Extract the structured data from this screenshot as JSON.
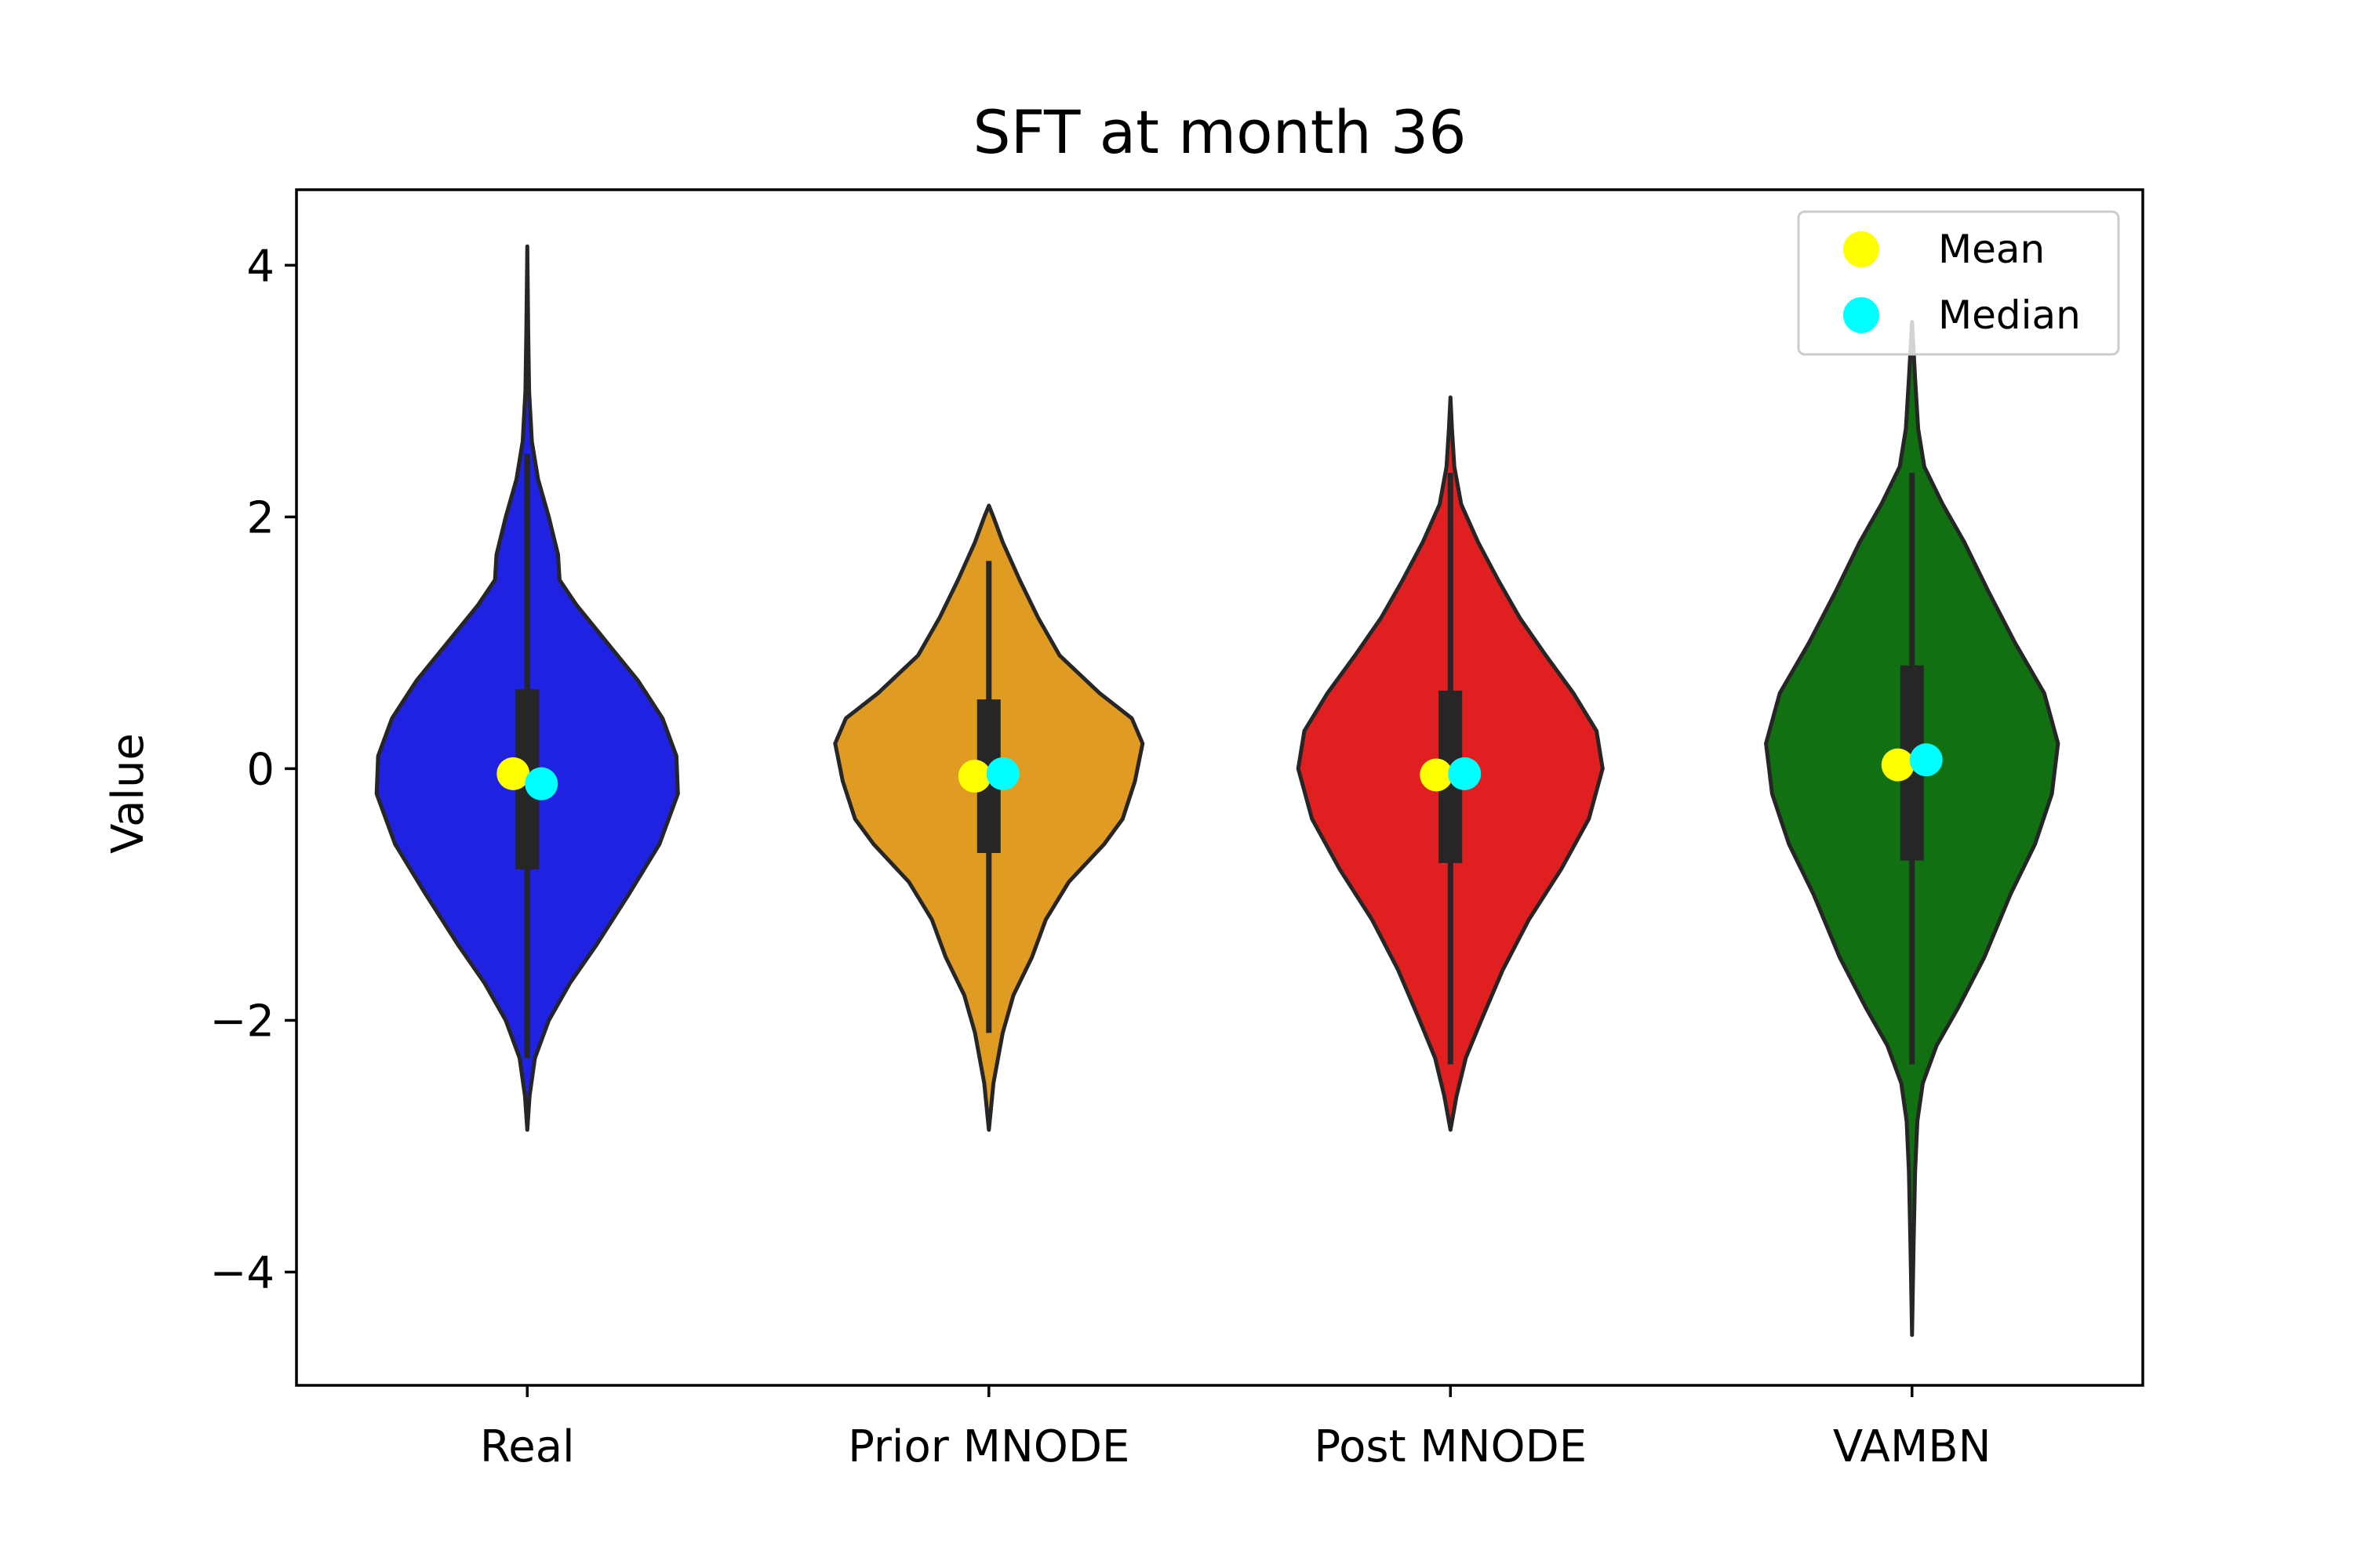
{
  "chart_data": {
    "type": "violin",
    "title": "SFT at month 36",
    "xlabel": "",
    "ylabel": "Value",
    "ylim": [
      -4.9,
      4.6
    ],
    "yticks": [
      4,
      2,
      0,
      -2,
      -4
    ],
    "ytick_labels": [
      "4",
      "2",
      "0",
      "−2",
      "−4"
    ],
    "categories": [
      "Real",
      "Prior MNODE",
      "Post MNODE",
      "VAMBN"
    ],
    "legend": {
      "position": "top-right",
      "entries": [
        {
          "label": "Mean",
          "color": "#ffff00"
        },
        {
          "label": "Median",
          "color": "#00ffff"
        }
      ]
    },
    "series": [
      {
        "category": "Real",
        "color": "#1f22e0",
        "mean": -0.04,
        "median": -0.12,
        "q1": -0.8,
        "q3": 0.63,
        "whisker_low": -2.3,
        "whisker_high": 2.5,
        "min": -2.87,
        "max": 4.15,
        "profile": [
          [
            -2.87,
            0.0
          ],
          [
            -2.6,
            0.015
          ],
          [
            -2.3,
            0.05
          ],
          [
            -2.0,
            0.14
          ],
          [
            -1.7,
            0.28
          ],
          [
            -1.4,
            0.45
          ],
          [
            -1.0,
            0.66
          ],
          [
            -0.6,
            0.86
          ],
          [
            -0.2,
            0.98
          ],
          [
            0.1,
            0.97
          ],
          [
            0.4,
            0.88
          ],
          [
            0.7,
            0.72
          ],
          [
            1.0,
            0.52
          ],
          [
            1.3,
            0.32
          ],
          [
            1.5,
            0.21
          ],
          [
            1.7,
            0.2
          ],
          [
            2.0,
            0.14
          ],
          [
            2.3,
            0.07
          ],
          [
            2.6,
            0.03
          ],
          [
            3.0,
            0.012
          ],
          [
            3.5,
            0.006
          ],
          [
            4.15,
            0.0
          ]
        ]
      },
      {
        "category": "Prior MNODE",
        "color": "#e09c22",
        "mean": -0.06,
        "median": -0.04,
        "q1": -0.67,
        "q3": 0.55,
        "whisker_low": -2.1,
        "whisker_high": 1.65,
        "min": -2.87,
        "max": 2.09,
        "profile": [
          [
            -2.87,
            0.0
          ],
          [
            -2.5,
            0.03
          ],
          [
            -2.1,
            0.09
          ],
          [
            -1.8,
            0.16
          ],
          [
            -1.5,
            0.28
          ],
          [
            -1.2,
            0.37
          ],
          [
            -0.9,
            0.52
          ],
          [
            -0.6,
            0.75
          ],
          [
            -0.4,
            0.87
          ],
          [
            -0.1,
            0.95
          ],
          [
            0.2,
            1.0
          ],
          [
            0.4,
            0.93
          ],
          [
            0.6,
            0.72
          ],
          [
            0.9,
            0.46
          ],
          [
            1.2,
            0.32
          ],
          [
            1.5,
            0.2
          ],
          [
            1.8,
            0.09
          ],
          [
            2.0,
            0.03
          ],
          [
            2.09,
            0.0
          ]
        ]
      },
      {
        "category": "Post MNODE",
        "color": "#e02020",
        "mean": -0.05,
        "median": -0.04,
        "q1": -0.75,
        "q3": 0.62,
        "whisker_low": -2.35,
        "whisker_high": 2.35,
        "min": -2.87,
        "max": 2.95,
        "profile": [
          [
            -2.87,
            0.0
          ],
          [
            -2.6,
            0.04
          ],
          [
            -2.3,
            0.1
          ],
          [
            -2.0,
            0.2
          ],
          [
            -1.6,
            0.34
          ],
          [
            -1.2,
            0.51
          ],
          [
            -0.8,
            0.72
          ],
          [
            -0.4,
            0.9
          ],
          [
            0.0,
            0.99
          ],
          [
            0.3,
            0.95
          ],
          [
            0.6,
            0.8
          ],
          [
            0.9,
            0.62
          ],
          [
            1.2,
            0.45
          ],
          [
            1.5,
            0.31
          ],
          [
            1.8,
            0.18
          ],
          [
            2.1,
            0.07
          ],
          [
            2.4,
            0.025
          ],
          [
            2.7,
            0.01
          ],
          [
            2.95,
            0.0
          ]
        ]
      },
      {
        "category": "VAMBN",
        "color": "#117011",
        "mean": 0.03,
        "median": 0.07,
        "q1": -0.73,
        "q3": 0.82,
        "whisker_low": -2.35,
        "whisker_high": 2.35,
        "min": -4.5,
        "max": 3.55,
        "profile": [
          [
            -4.5,
            0.0
          ],
          [
            -3.8,
            0.01
          ],
          [
            -3.2,
            0.02
          ],
          [
            -2.8,
            0.035
          ],
          [
            -2.5,
            0.07
          ],
          [
            -2.2,
            0.16
          ],
          [
            -1.9,
            0.3
          ],
          [
            -1.5,
            0.47
          ],
          [
            -1.0,
            0.64
          ],
          [
            -0.6,
            0.8
          ],
          [
            -0.2,
            0.91
          ],
          [
            0.2,
            0.95
          ],
          [
            0.6,
            0.86
          ],
          [
            1.0,
            0.67
          ],
          [
            1.4,
            0.5
          ],
          [
            1.8,
            0.34
          ],
          [
            2.1,
            0.2
          ],
          [
            2.4,
            0.08
          ],
          [
            2.7,
            0.04
          ],
          [
            3.1,
            0.02
          ],
          [
            3.55,
            0.0
          ]
        ]
      }
    ]
  }
}
